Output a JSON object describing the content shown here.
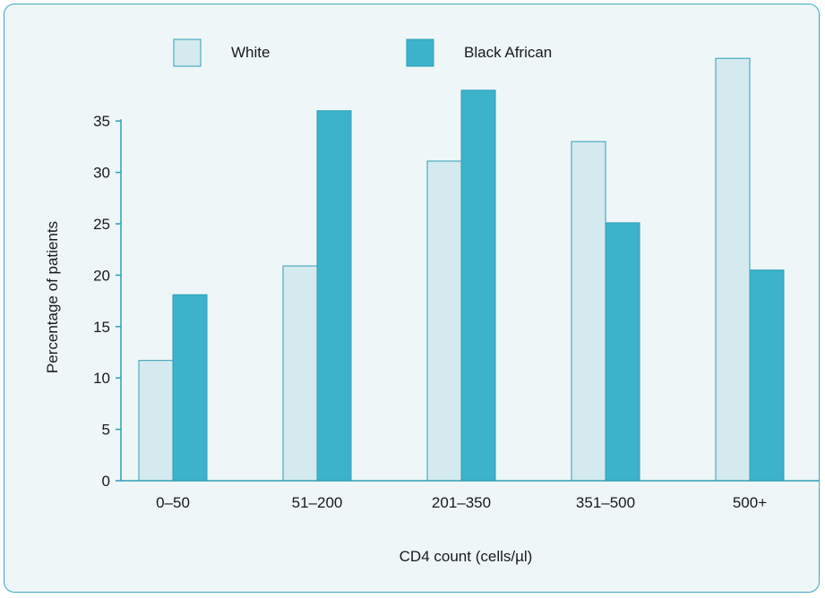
{
  "chart_data": {
    "type": "bar",
    "categories": [
      "0–50",
      "51–200",
      "201–350",
      "351–500",
      "500+"
    ],
    "series": [
      {
        "name": "White",
        "values": [
          11.7,
          20.9,
          31.1,
          33.0,
          41.1
        ]
      },
      {
        "name": "Black African",
        "values": [
          18.1,
          36.0,
          38.0,
          25.1,
          20.5
        ]
      }
    ],
    "title": "",
    "xlabel": "CD4 count (cells/µl)",
    "ylabel": "Percentage of patients",
    "ylim": [
      0,
      42
    ],
    "yticks": [
      0,
      5,
      10,
      15,
      20,
      25,
      30,
      35
    ],
    "grid": false,
    "legend": "top",
    "colors": {
      "White": "#d4eaef",
      "Black African": "#3cb3ca",
      "bar_stroke": "#2e9fb7",
      "axis": "#2e9fb7",
      "background": "#eef6f7",
      "border": "#3aa9c1"
    }
  }
}
